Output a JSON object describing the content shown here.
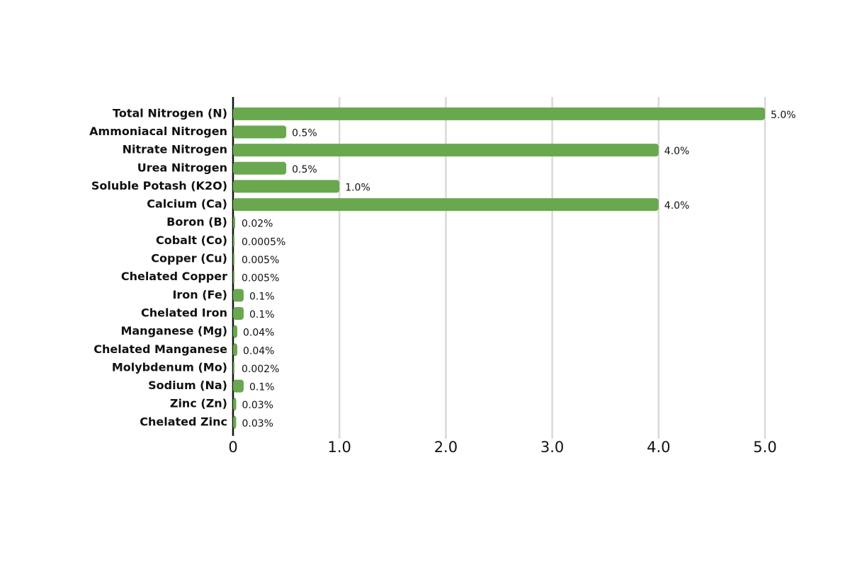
{
  "chart_data": {
    "type": "bar",
    "orientation": "horizontal",
    "color": "#6aa84f",
    "grid": true,
    "categories": [
      "Total Nitrogen (N)",
      "Ammoniacal Nitrogen",
      "Nitrate Nitrogen",
      "Urea Nitrogen",
      "Soluble Potash (K2O)",
      "Calcium (Ca)",
      "Boron (B)",
      "Cobalt (Co)",
      "Copper (Cu)",
      "Chelated Copper",
      "Iron (Fe)",
      "Chelated Iron",
      "Manganese (Mg)",
      "Chelated Manganese",
      "Molybdenum (Mo)",
      "Sodium (Na)",
      "Zinc (Zn)",
      "Chelated Zinc"
    ],
    "values": [
      5,
      0.5,
      4,
      0.5,
      1,
      4,
      0.02,
      0.0005,
      0.005,
      0.005,
      0.1,
      0.1,
      0.04,
      0.04,
      0.002,
      0.1,
      0.03,
      0.03
    ],
    "value_labels": [
      "5.0%",
      "0.5%",
      "4.0%",
      "0.5%",
      "1.0%",
      "4.0%",
      "0.02%",
      "0.0005%",
      "0.005%",
      "0.005%",
      "0.1%",
      "0.1%",
      "0.04%",
      "0.04%",
      "0.002%",
      "0.1%",
      "0.03%",
      "0.03%"
    ],
    "xlim": [
      0,
      5
    ],
    "xticks": [
      0,
      {
        "value": 1,
        "label": "1.0"
      },
      {
        "value": 2,
        "label": "2.0"
      },
      {
        "value": 3,
        "label": "3.0"
      },
      {
        "value": 4,
        "label": "4.0"
      },
      {
        "value": 5,
        "label": "5.0"
      }
    ]
  }
}
